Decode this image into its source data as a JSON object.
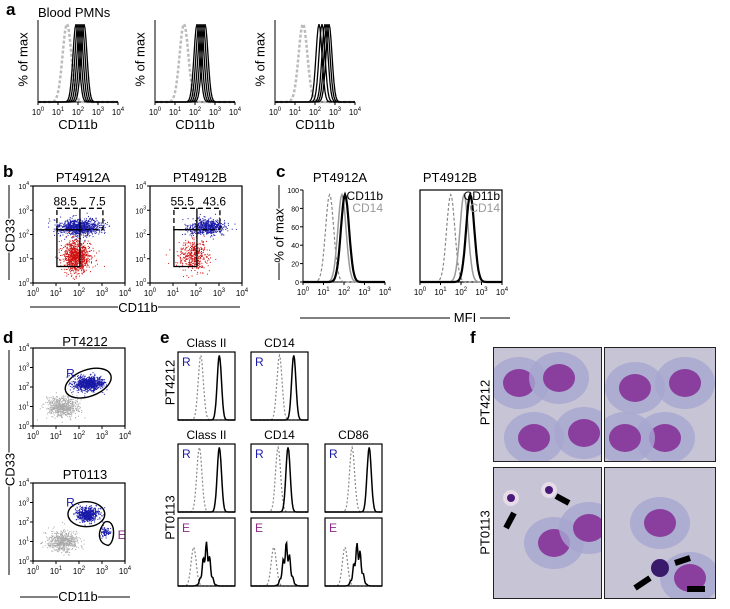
{
  "panel_labels": [
    "a",
    "b",
    "c",
    "d",
    "e",
    "f"
  ],
  "chart_data": [
    {
      "id": "a",
      "type": "line",
      "title": "Blood PMNs",
      "xlabel": "CD11b",
      "ylabel": "% of max",
      "xscale": "log",
      "xlim": [
        0,
        4
      ],
      "xticks": [
        "10^0",
        "10^1",
        "10^2",
        "10^3",
        "10^4"
      ],
      "plots": [
        {
          "control_peak": 0.45,
          "peaks": [
            1.9,
            2.0,
            2.1,
            2.2,
            2.3
          ]
        },
        {
          "control_peak": 0.45,
          "peaks": [
            2.1,
            2.2,
            2.3,
            2.4,
            2.5
          ]
        },
        {
          "control_peak": 0.4,
          "peaks": [
            2.2,
            2.35,
            2.5,
            2.6,
            2.7
          ]
        }
      ]
    },
    {
      "id": "b",
      "type": "scatter",
      "xlabel": "CD11b",
      "ylabel": "CD33",
      "xlim": [
        0,
        4
      ],
      "ylim": [
        0,
        4
      ],
      "xticks": [
        "10^0",
        "10^1",
        "10^2",
        "10^3",
        "10^4"
      ],
      "yticks": [
        "10^0",
        "10^1",
        "10^2",
        "10^3",
        "10^4"
      ],
      "plots": [
        {
          "title": "PT4912A",
          "gate_values": [
            "88.5",
            "7.5"
          ]
        },
        {
          "title": "PT4912B",
          "gate_values": [
            "55.5",
            "43.6"
          ]
        }
      ]
    },
    {
      "id": "c",
      "type": "line",
      "xlabel": "MFI",
      "ylabel": "% of max",
      "ylim": [
        0,
        100
      ],
      "yticks": [
        "0",
        "20",
        "40",
        "60",
        "80",
        "100"
      ],
      "xticks": [
        "10^0",
        "10^1",
        "10^2",
        "10^3",
        "10^4"
      ],
      "legend": [
        "CD11b",
        "CD14"
      ],
      "plots": [
        {
          "title": "PT4912A",
          "control_peak": 1.3,
          "cd11b_peak": 2.05,
          "cd14_peak": 1.9
        },
        {
          "title": "PT4912B",
          "control_peak": 1.5,
          "cd11b_peak": 2.45,
          "cd14_peak": 2.15
        }
      ]
    },
    {
      "id": "d",
      "type": "scatter",
      "xlabel": "CD11b",
      "ylabel": "CD33",
      "xticks": [
        "10^0",
        "10^1",
        "10^2",
        "10^3",
        "10^4"
      ],
      "yticks": [
        "10^0",
        "10^1",
        "10^2",
        "10^3",
        "10^4"
      ],
      "plots": [
        {
          "title": "PT4212",
          "gates": [
            "R"
          ]
        },
        {
          "title": "PT0113",
          "gates": [
            "R",
            "E"
          ]
        }
      ]
    },
    {
      "id": "e",
      "type": "line",
      "row_labels": [
        "PT4212",
        "PT0113"
      ],
      "rows": [
        {
          "sample": "PT4212",
          "plots": [
            {
              "title": "Class II",
              "gate": "R"
            },
            {
              "title": "CD14",
              "gate": "R"
            }
          ]
        },
        {
          "sample": "PT0113",
          "plots": [
            {
              "title": "Class II",
              "gate": "R"
            },
            {
              "title": "CD14",
              "gate": "R"
            },
            {
              "title": "CD86",
              "gate": "R"
            }
          ]
        },
        {
          "sample": "PT0113",
          "plots": [
            {
              "gate": "E"
            },
            {
              "gate": "E"
            },
            {
              "gate": "E"
            }
          ]
        }
      ]
    }
  ],
  "f": {
    "row_labels": [
      "PT4212",
      "PT0113"
    ]
  },
  "colors": {
    "blue": "#1a1aa8",
    "red": "#d01010",
    "gray": "#9a9a9a",
    "magenta": "#8b2a8b"
  }
}
